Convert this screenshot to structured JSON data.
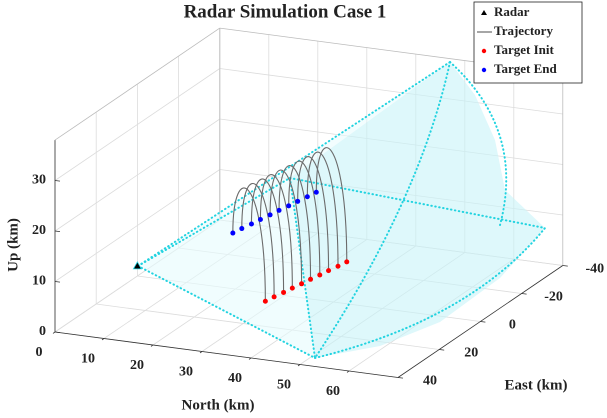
{
  "chart_data": {
    "type": "scatter3d",
    "title": "Radar Simulation Case 1",
    "xlabel": "North (km)",
    "ylabel": "East (km)",
    "zlabel": "Up (km)",
    "xlim": [
      0,
      70
    ],
    "ylim": [
      -40,
      40
    ],
    "zlim": [
      0,
      38
    ],
    "xticks": [
      0,
      10,
      20,
      30,
      40,
      50,
      60
    ],
    "yticks": [
      -40,
      -20,
      0,
      20,
      40
    ],
    "zticks": [
      0,
      10,
      20,
      30
    ],
    "grid": true,
    "legend_position": "northeast",
    "series": [
      {
        "name": "Radar",
        "color": "#000000"
      },
      {
        "name": "Trajectory",
        "color": "#6b6b6b"
      },
      {
        "name": "Target Init",
        "color": "#ff0000"
      },
      {
        "name": "Target End",
        "color": "#0000ff"
      }
    ],
    "radar": [
      0,
      0,
      2
    ],
    "trajectories": [
      {
        "init": [
          32.0,
          14.0,
          3
        ],
        "end": [
          22.0,
          6.0,
          13
        ],
        "peak": 23
      },
      {
        "init": [
          32.4,
          10.7,
          3
        ],
        "end": [
          22.4,
          2.6,
          13
        ],
        "peak": 23
      },
      {
        "init": [
          32.9,
          7.3,
          3
        ],
        "end": [
          22.9,
          -0.9,
          13
        ],
        "peak": 23
      },
      {
        "init": [
          33.3,
          4.0,
          3
        ],
        "end": [
          23.3,
          -4.3,
          13
        ],
        "peak": 23
      },
      {
        "init": [
          33.8,
          0.7,
          3
        ],
        "end": [
          23.8,
          -7.8,
          13
        ],
        "peak": 23
      },
      {
        "init": [
          34.2,
          -2.7,
          3
        ],
        "end": [
          24.2,
          -11.2,
          13
        ],
        "peak": 23
      },
      {
        "init": [
          34.7,
          -6.0,
          3
        ],
        "end": [
          24.7,
          -14.7,
          13
        ],
        "peak": 23
      },
      {
        "init": [
          35.1,
          -9.3,
          3
        ],
        "end": [
          25.1,
          -18.1,
          13
        ],
        "peak": 23
      },
      {
        "init": [
          35.6,
          -12.7,
          3
        ],
        "end": [
          25.6,
          -21.6,
          13
        ],
        "peak": 23
      },
      {
        "init": [
          36.0,
          -16.0,
          3
        ],
        "end": [
          26.0,
          -25.0,
          13
        ],
        "peak": 23
      }
    ]
  }
}
